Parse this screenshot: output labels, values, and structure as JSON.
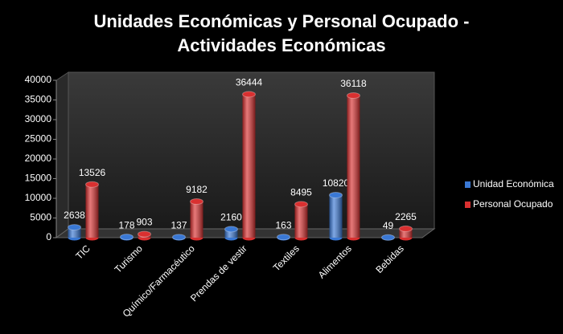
{
  "chart_data": {
    "type": "bar",
    "title": "Unidades Económicas y Personal Ocupado - Actividades Económicas",
    "categories": [
      "TIC",
      "Turismo",
      "Químico/Farmacéutico",
      "Prendas de vestir",
      "Textiles",
      "Alimentos",
      "Bebidas"
    ],
    "series": [
      {
        "name": "Unidad Económica",
        "color": "#3a78d4",
        "values": [
          2638,
          178,
          137,
          2160,
          163,
          10820,
          49
        ]
      },
      {
        "name": "Personal Ocupado",
        "color": "#d93030",
        "values": [
          13526,
          903,
          9182,
          36444,
          8495,
          36118,
          2265
        ]
      }
    ],
    "ylim": [
      0,
      40000
    ],
    "yticks": [
      0,
      5000,
      10000,
      15000,
      20000,
      25000,
      30000,
      35000,
      40000
    ],
    "grid": false,
    "legend": "right"
  }
}
